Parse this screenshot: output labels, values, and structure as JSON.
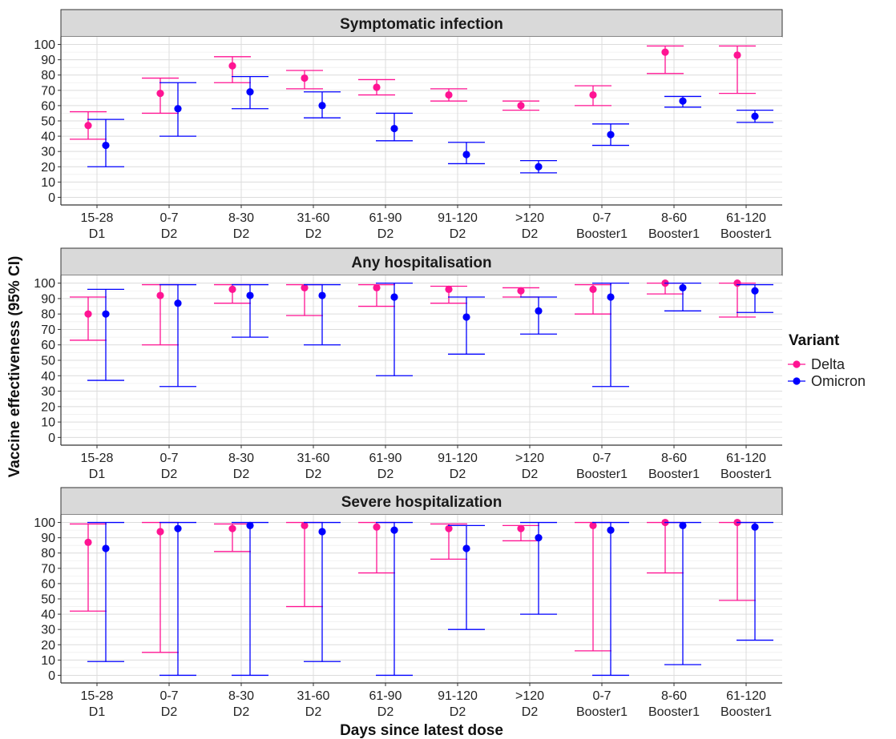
{
  "chart_data": {
    "type": "scatter",
    "ylabel": "Vaccine effectiveness (95% CI)",
    "xlabel": "Days since latest dose",
    "ylim": [
      0,
      100
    ],
    "y_ticks": [
      0,
      10,
      20,
      30,
      40,
      50,
      60,
      70,
      80,
      90,
      100
    ],
    "grid": true,
    "legend": {
      "title": "Variant",
      "placement": "right",
      "entries": [
        {
          "name": "Delta",
          "color": "#ff1493"
        },
        {
          "name": "Omicron",
          "color": "#0000ff"
        }
      ]
    },
    "categories": [
      {
        "days": "15-28",
        "dose": "D1"
      },
      {
        "days": "0-7",
        "dose": "D2"
      },
      {
        "days": "8-30",
        "dose": "D2"
      },
      {
        "days": "31-60",
        "dose": "D2"
      },
      {
        "days": "61-90",
        "dose": "D2"
      },
      {
        "days": "91-120",
        "dose": "D2"
      },
      {
        "days": ">120",
        "dose": "D2"
      },
      {
        "days": "0-7",
        "dose": "Booster1"
      },
      {
        "days": "8-60",
        "dose": "Booster1"
      },
      {
        "days": "61-120",
        "dose": "Booster1"
      }
    ],
    "panels": [
      {
        "title": "Symptomatic infection",
        "series": [
          {
            "name": "Delta",
            "color": "#ff1493",
            "values": [
              47,
              68,
              86,
              78,
              72,
              67,
              60,
              67,
              95,
              93
            ],
            "lower": [
              38,
              55,
              75,
              71,
              67,
              63,
              57,
              60,
              81,
              68
            ],
            "upper": [
              56,
              78,
              92,
              83,
              77,
              71,
              63,
              73,
              99,
              99
            ]
          },
          {
            "name": "Omicron",
            "color": "#0000ff",
            "values": [
              34,
              58,
              69,
              60,
              45,
              28,
              20,
              41,
              63,
              53
            ],
            "lower": [
              20,
              40,
              58,
              52,
              37,
              22,
              16,
              34,
              59,
              49
            ],
            "upper": [
              51,
              75,
              79,
              69,
              55,
              36,
              24,
              48,
              66,
              57
            ]
          }
        ]
      },
      {
        "title": "Any hospitalisation",
        "series": [
          {
            "name": "Delta",
            "color": "#ff1493",
            "values": [
              80,
              92,
              96,
              97,
              97,
              96,
              95,
              96,
              100,
              100
            ],
            "lower": [
              63,
              60,
              87,
              79,
              85,
              87,
              91,
              80,
              93,
              78
            ],
            "upper": [
              91,
              99,
              99,
              99,
              99,
              98,
              97,
              99,
              100,
              100
            ]
          },
          {
            "name": "Omicron",
            "color": "#0000ff",
            "values": [
              80,
              87,
              92,
              92,
              91,
              78,
              82,
              91,
              97,
              95
            ],
            "lower": [
              37,
              33,
              65,
              60,
              40,
              54,
              67,
              33,
              82,
              81
            ],
            "upper": [
              96,
              99,
              99,
              99,
              100,
              91,
              91,
              100,
              100,
              99
            ]
          }
        ]
      },
      {
        "title": "Severe hospitalization",
        "series": [
          {
            "name": "Delta",
            "color": "#ff1493",
            "values": [
              87,
              94,
              96,
              98,
              97,
              96,
              96,
              98,
              100,
              100
            ],
            "lower": [
              42,
              15,
              81,
              45,
              67,
              76,
              88,
              16,
              67,
              49
            ],
            "upper": [
              99,
              100,
              99,
              100,
              100,
              99,
              98,
              100,
              100,
              100
            ]
          },
          {
            "name": "Omicron",
            "color": "#0000ff",
            "values": [
              83,
              96,
              98,
              94,
              95,
              83,
              90,
              95,
              98,
              97
            ],
            "lower": [
              9,
              0,
              0,
              9,
              0,
              30,
              40,
              0,
              7,
              23
            ],
            "upper": [
              100,
              100,
              100,
              100,
              100,
              98,
              100,
              100,
              100,
              100
            ]
          }
        ]
      }
    ]
  }
}
